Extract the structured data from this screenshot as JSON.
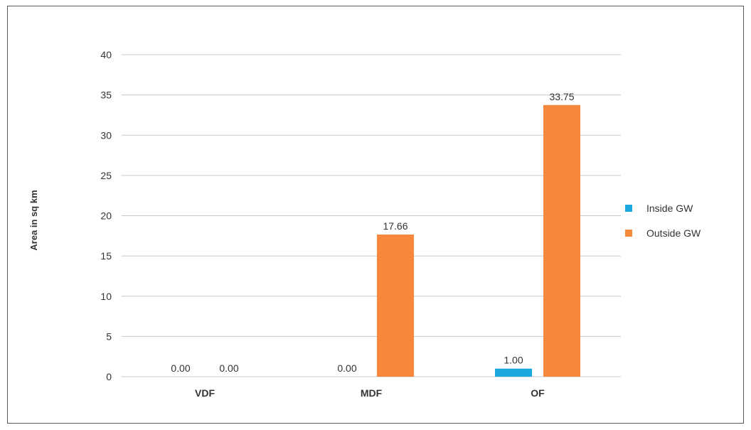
{
  "chart_data": {
    "type": "bar",
    "categories": [
      "VDF",
      "MDF",
      "OF"
    ],
    "series": [
      {
        "name": "Inside GW",
        "color": "#1ba8e0",
        "values": [
          0.0,
          0.0,
          1.0
        ],
        "labels": [
          "0.00",
          "0.00",
          "1.00"
        ]
      },
      {
        "name": "Outside GW",
        "color": "#f5883a",
        "values": [
          0.0,
          17.66,
          33.75
        ],
        "labels": [
          "0.00",
          "17.66",
          "33.75"
        ]
      }
    ],
    "title": "",
    "xlabel": "",
    "ylabel": "Area in sq km",
    "ylim": [
      0,
      40
    ],
    "yticks": [
      "0",
      "5",
      "10",
      "15",
      "20",
      "25",
      "30",
      "35",
      "40"
    ],
    "grid": true,
    "legend": "right",
    "gridColor": "#c8c8c8"
  }
}
